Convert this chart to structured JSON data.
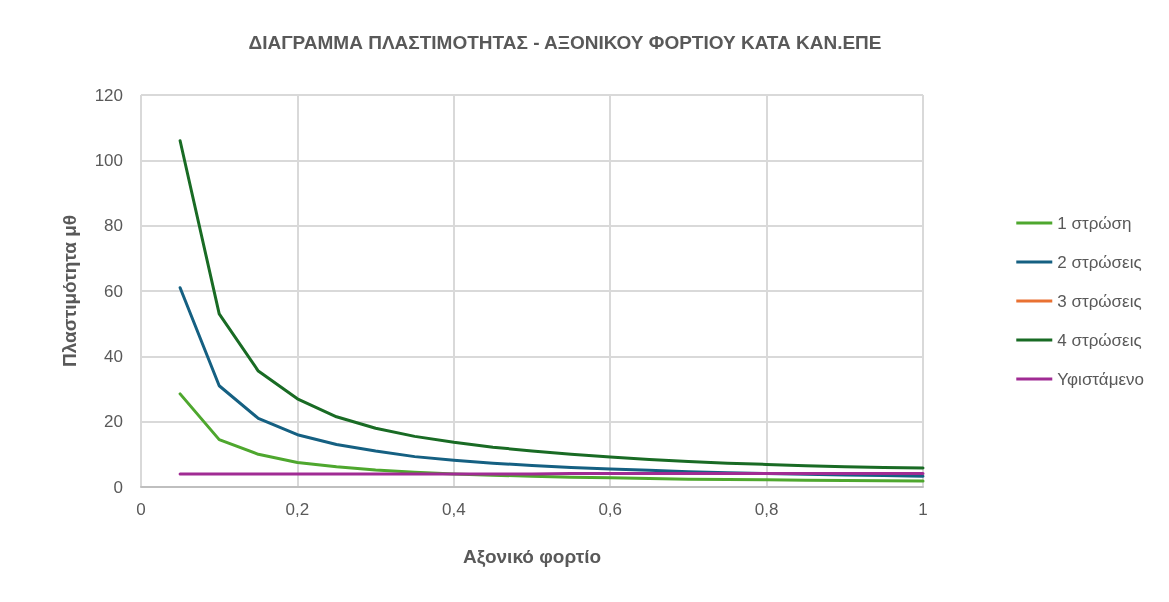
{
  "chart_data": {
    "type": "line",
    "title": "ΔΙΑΓΡΑΜΜΑ ΠΛΑΣΤΙΜΟΤΗΤΑΣ - ΑΞΟΝΙΚΟΥ ΦΟΡΤΙΟΥ ΚΑΤΑ ΚΑΝ.ΕΠΕ",
    "xlabel": "Αξονικό φορτίο",
    "ylabel": "Πλαστιμότητα μθ",
    "x": [
      0.05,
      0.1,
      0.15,
      0.2,
      0.25,
      0.3,
      0.35,
      0.4,
      0.45,
      0.5,
      0.55,
      0.6,
      0.65,
      0.7,
      0.75,
      0.8,
      0.85,
      0.9,
      0.95,
      1
    ],
    "series": [
      {
        "name": "1 στρώση",
        "color": "#4ea72e",
        "values": [
          28.5,
          14.5,
          10,
          7.5,
          6.2,
          5.2,
          4.5,
          4,
          3.6,
          3.3,
          3,
          2.8,
          2.6,
          2.4,
          2.3,
          2.2,
          2.1,
          2,
          1.9,
          1.8
        ]
      },
      {
        "name": "2 στρώσεις",
        "color": "#156082",
        "values": [
          61,
          31,
          21,
          16,
          13,
          11,
          9.3,
          8.2,
          7.3,
          6.6,
          6,
          5.5,
          5.1,
          4.7,
          4.4,
          4.1,
          3.9,
          3.7,
          3.5,
          3.3
        ]
      },
      {
        "name": "3 στρώσεις",
        "color": "#e97132",
        "values": [
          null,
          null,
          null,
          null,
          null,
          null,
          null,
          null,
          null,
          null,
          null,
          null,
          null,
          null,
          null,
          null,
          null,
          null,
          null,
          null
        ]
      },
      {
        "name": "4 στρώσεις",
        "color": "#196b24",
        "values": [
          106,
          53,
          35.5,
          27,
          21.5,
          18,
          15.5,
          13.7,
          12.2,
          11,
          10,
          9.2,
          8.4,
          7.8,
          7.3,
          6.9,
          6.5,
          6.2,
          6,
          5.8
        ]
      },
      {
        "name": "Υφιστάμενο",
        "color": "#a02b93",
        "values": [
          4,
          4,
          4,
          4,
          4,
          4,
          4,
          4,
          4,
          4,
          4.1,
          4.1,
          4.1,
          4.1,
          4.1,
          4.1,
          4.1,
          4.1,
          4.1,
          4.1
        ]
      }
    ],
    "xlim": [
      0,
      1
    ],
    "xticks": [
      0,
      {
        "value": 0.2,
        "label": "0,2"
      },
      {
        "value": 0.4,
        "label": "0,4"
      },
      {
        "value": 0.6,
        "label": "0,6"
      },
      {
        "value": 0.8,
        "label": "0,8"
      },
      1
    ],
    "ylim": [
      0,
      120
    ],
    "yticks": [
      0,
      20,
      40,
      60,
      80,
      100,
      120
    ],
    "grid": true,
    "legend": "right",
    "marker": "none",
    "line_style": "solid"
  }
}
